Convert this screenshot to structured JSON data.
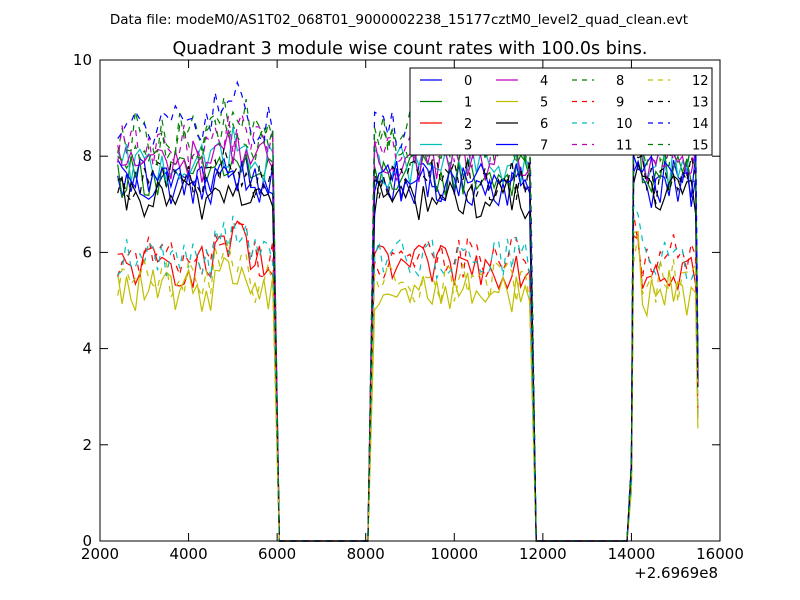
{
  "header": {
    "file_label": "Data file: modeM0/AS1T02_068T01_9000002238_15177cztM0_level2_quad_clean.evt"
  },
  "chart_data": {
    "type": "line",
    "title": "Quadrant 3 module wise count rates with 100.0s bins.",
    "xlabel": "",
    "ylabel": "",
    "x_offset_label": "+2.6969e8",
    "xlim": [
      2000,
      16000
    ],
    "ylim": [
      0,
      10
    ],
    "xticks": [
      2000,
      4000,
      6000,
      8000,
      10000,
      12000,
      14000,
      16000
    ],
    "xtick_labels": [
      "2000",
      "4000",
      "6000",
      "8000",
      "10000",
      "12000",
      "14000",
      "16000"
    ],
    "yticks": [
      0,
      2,
      4,
      6,
      8,
      10
    ],
    "ytick_labels": [
      "0",
      "2",
      "4",
      "6",
      "8",
      "10"
    ],
    "grid": false,
    "legend_position": "top-right",
    "legend_columns": 4,
    "segments": [
      {
        "x0": 2400,
        "x1": 5900,
        "drop_to": 6100
      },
      {
        "x0": 8000,
        "x1": 8200,
        "rise": true
      },
      {
        "x0": 8200,
        "x1": 11700,
        "drop_to": 11900
      },
      {
        "x0": 13800,
        "x1": 14050,
        "rise": true
      },
      {
        "x0": 14050,
        "x1": 15450,
        "drop_to": 15500
      }
    ],
    "series": [
      {
        "name": "0",
        "color": "#0000ff",
        "dash": "solid",
        "level": 7.4,
        "peak": 7.6
      },
      {
        "name": "1",
        "color": "#008000",
        "dash": "solid",
        "level": 7.6,
        "peak": 7.8
      },
      {
        "name": "2",
        "color": "#ff0000",
        "dash": "solid",
        "level": 5.7,
        "peak": 6.2
      },
      {
        "name": "3",
        "color": "#00bfbf",
        "dash": "solid",
        "level": 7.8,
        "peak": 8.2
      },
      {
        "name": "4",
        "color": "#bf00bf",
        "dash": "solid",
        "level": 7.9,
        "peak": 8.2
      },
      {
        "name": "5",
        "color": "#bfbf00",
        "dash": "solid",
        "level": 5.2,
        "peak": 5.6
      },
      {
        "name": "6",
        "color": "#000000",
        "dash": "solid",
        "level": 7.1,
        "peak": 7.3
      },
      {
        "name": "7",
        "color": "#0000ff",
        "dash": "solid",
        "level": 7.5,
        "peak": 7.7
      },
      {
        "name": "8",
        "color": "#008000",
        "dash": "dashed",
        "level": 8.5,
        "peak": 8.8
      },
      {
        "name": "9",
        "color": "#ff0000",
        "dash": "dashed",
        "level": 5.9,
        "peak": 6.3
      },
      {
        "name": "10",
        "color": "#00bfbf",
        "dash": "dashed",
        "level": 5.9,
        "peak": 6.4
      },
      {
        "name": "11",
        "color": "#bf00bf",
        "dash": "dashed",
        "level": 8.2,
        "peak": 8.5
      },
      {
        "name": "12",
        "color": "#bfbf00",
        "dash": "dashed",
        "level": 5.4,
        "peak": 6.0
      },
      {
        "name": "13",
        "color": "#000000",
        "dash": "dashed",
        "level": 7.5,
        "peak": 7.8
      },
      {
        "name": "14",
        "color": "#0000ff",
        "dash": "dashed",
        "level": 8.6,
        "peak": 9.2
      },
      {
        "name": "15",
        "color": "#008000",
        "dash": "dashed",
        "level": 8.2,
        "peak": 8.6
      }
    ]
  }
}
